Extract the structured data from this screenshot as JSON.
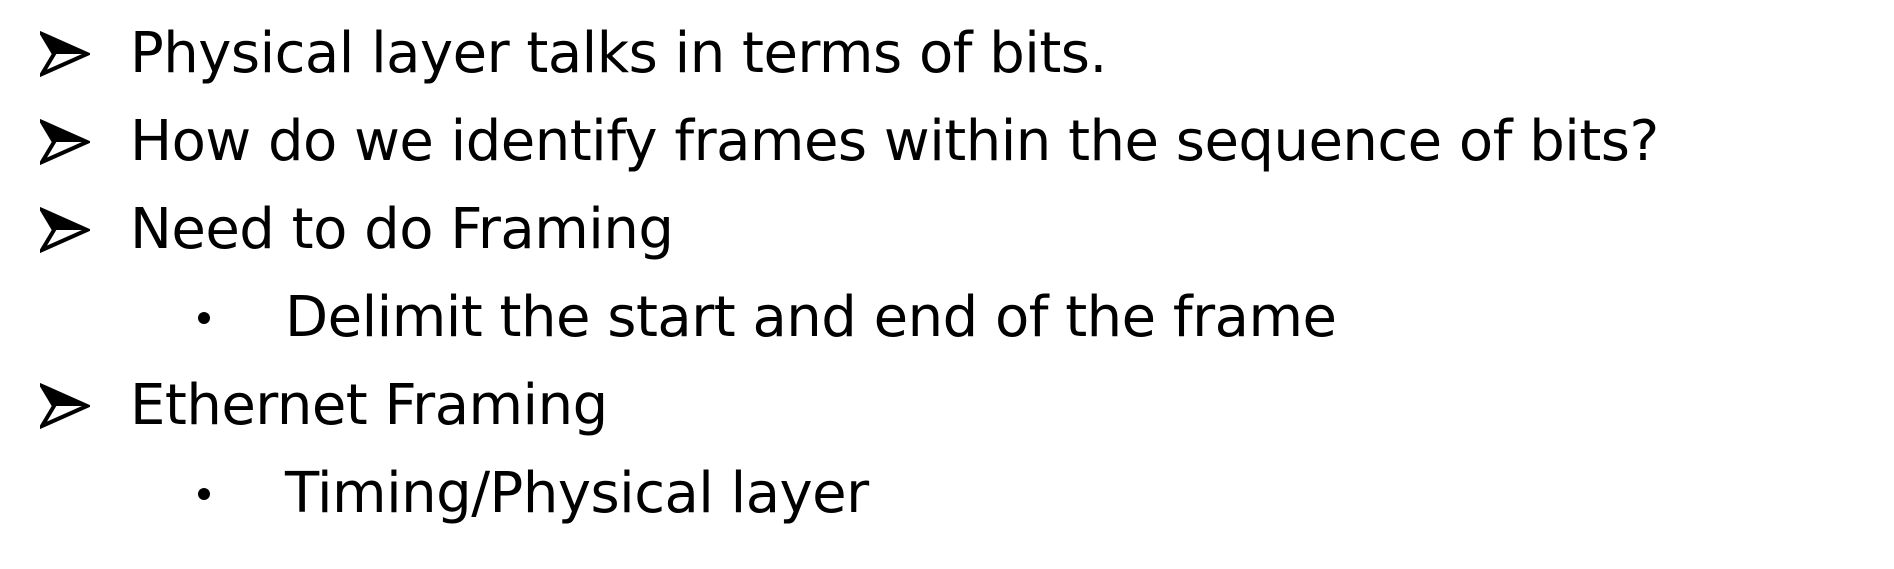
{
  "bullets": [
    {
      "level": 1,
      "text": "Physical layer talks in terms of bits."
    },
    {
      "level": 1,
      "text": "How do we identify frames within the sequence of bits?"
    },
    {
      "level": 1,
      "text": "Need to do Framing"
    },
    {
      "level": 2,
      "text": "Delimit the start and end of the frame"
    },
    {
      "level": 1,
      "text": "Ethernet Framing"
    },
    {
      "level": 2,
      "text": "Timing/Physical layer"
    }
  ],
  "colors": {
    "text": "#000000",
    "background": "#ffffff"
  },
  "icons": {
    "level1_marker": "arrowhead-bullet-icon",
    "level2_marker": "round-bullet-icon"
  }
}
